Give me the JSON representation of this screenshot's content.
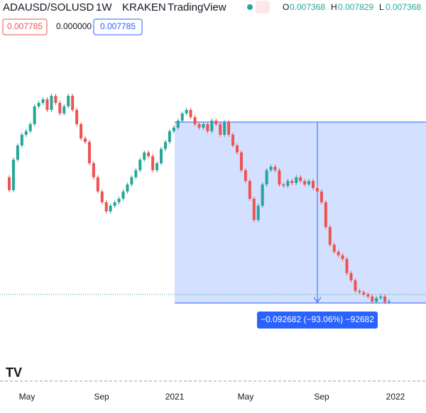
{
  "header": {
    "symbol": "ADAUSD/SOLUSD",
    "interval": "1W",
    "exchange": "KRAKEN",
    "source": "TradingView",
    "open_label": "O",
    "open": "0.007368",
    "high_label": "H",
    "high": "0.007829",
    "low_label": "L",
    "low": "0.007368"
  },
  "price_boxes": [
    "0.007785",
    "0.000000",
    "0.007785"
  ],
  "chart_data": {
    "type": "candlestick",
    "up_color": "#26a69a",
    "down_color": "#ef5350",
    "ylim": [
      -0.0342,
      0.1621
    ],
    "first_open": 0.0713,
    "close": [
      0.0647,
      0.0803,
      0.0876,
      0.0931,
      0.0949,
      0.0985,
      0.1076,
      0.1094,
      0.1112,
      0.1058,
      0.113,
      0.1094,
      0.104,
      0.1076,
      0.113,
      0.1058,
      0.0985,
      0.0912,
      0.0894,
      0.0785,
      0.0713,
      0.064,
      0.0585,
      0.0538,
      0.0567,
      0.0585,
      0.0603,
      0.064,
      0.0676,
      0.0713,
      0.0749,
      0.0803,
      0.084,
      0.0821,
      0.0749,
      0.0785,
      0.0858,
      0.0894,
      0.0949,
      0.0967,
      0.1003,
      0.104,
      0.1058,
      0.1021,
      0.0985,
      0.0967,
      0.0985,
      0.0949,
      0.1003,
      0.0985,
      0.0931,
      0.0996,
      0.0931,
      0.0876,
      0.084,
      0.0749,
      0.0694,
      0.0603,
      0.0494,
      0.0567,
      0.0676,
      0.0749,
      0.0767,
      0.0749,
      0.0676,
      0.0669,
      0.0694,
      0.0683,
      0.0713,
      0.0694,
      0.0676,
      0.0694,
      0.0658,
      0.064,
      0.0585,
      0.0458,
      0.0367,
      0.0331,
      0.0313,
      0.0294,
      0.0222,
      0.0185,
      0.0131,
      0.0124,
      0.0113,
      0.0102,
      0.0076,
      0.0094,
      0.0102,
      0.007368,
      0.007785
    ],
    "x_labels": [
      "May",
      "Sep",
      "2021",
      "May",
      "Sep",
      "2022"
    ],
    "measure": {
      "from": 0.0996,
      "to": 0.00691,
      "label": "−0.092682 (−93.06%) −92682"
    }
  }
}
